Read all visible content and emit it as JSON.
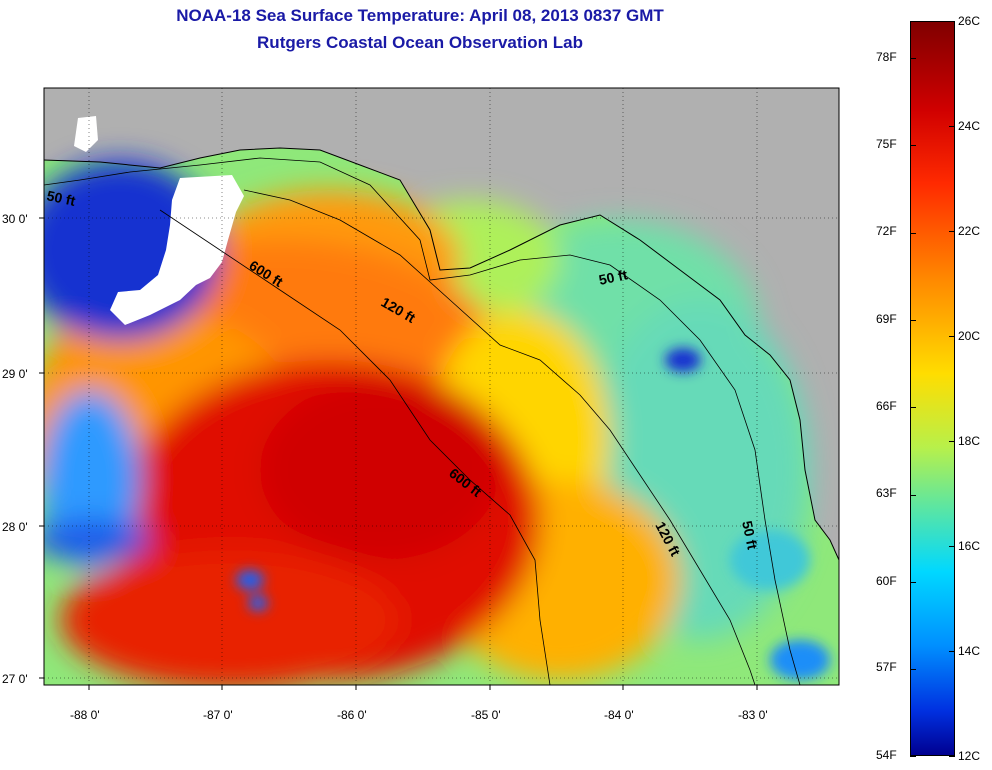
{
  "title_line1": "NOAA-18 Sea Surface Temperature:  April 08, 2013 0837 GMT",
  "title_line2": "Rutgers Coastal Ocean Observation Lab",
  "latitude_labels": [
    "30 0'",
    "29 0'",
    "28 0'",
    "27 0'"
  ],
  "longitude_labels": [
    "-88 0'",
    "-87 0'",
    "-86 0'",
    "-85 0'",
    "-84 0'",
    "-83 0'"
  ],
  "contour_labels": {
    "c50_west": "50 ft",
    "c600_north": "600 ft",
    "c120_north": "120 ft",
    "c50_east": "50 ft",
    "c600_south": "600 ft",
    "c120_south": "120 ft",
    "c50_south": "50 ft"
  },
  "colorbar": {
    "fahrenheit": [
      "78F",
      "75F",
      "72F",
      "69F",
      "66F",
      "63F",
      "60F",
      "57F",
      "54F"
    ],
    "celsius": [
      "26C",
      "24C",
      "22C",
      "20C",
      "18C",
      "16C",
      "14C",
      "12C"
    ],
    "min_c": 12,
    "max_c": 26
  }
}
